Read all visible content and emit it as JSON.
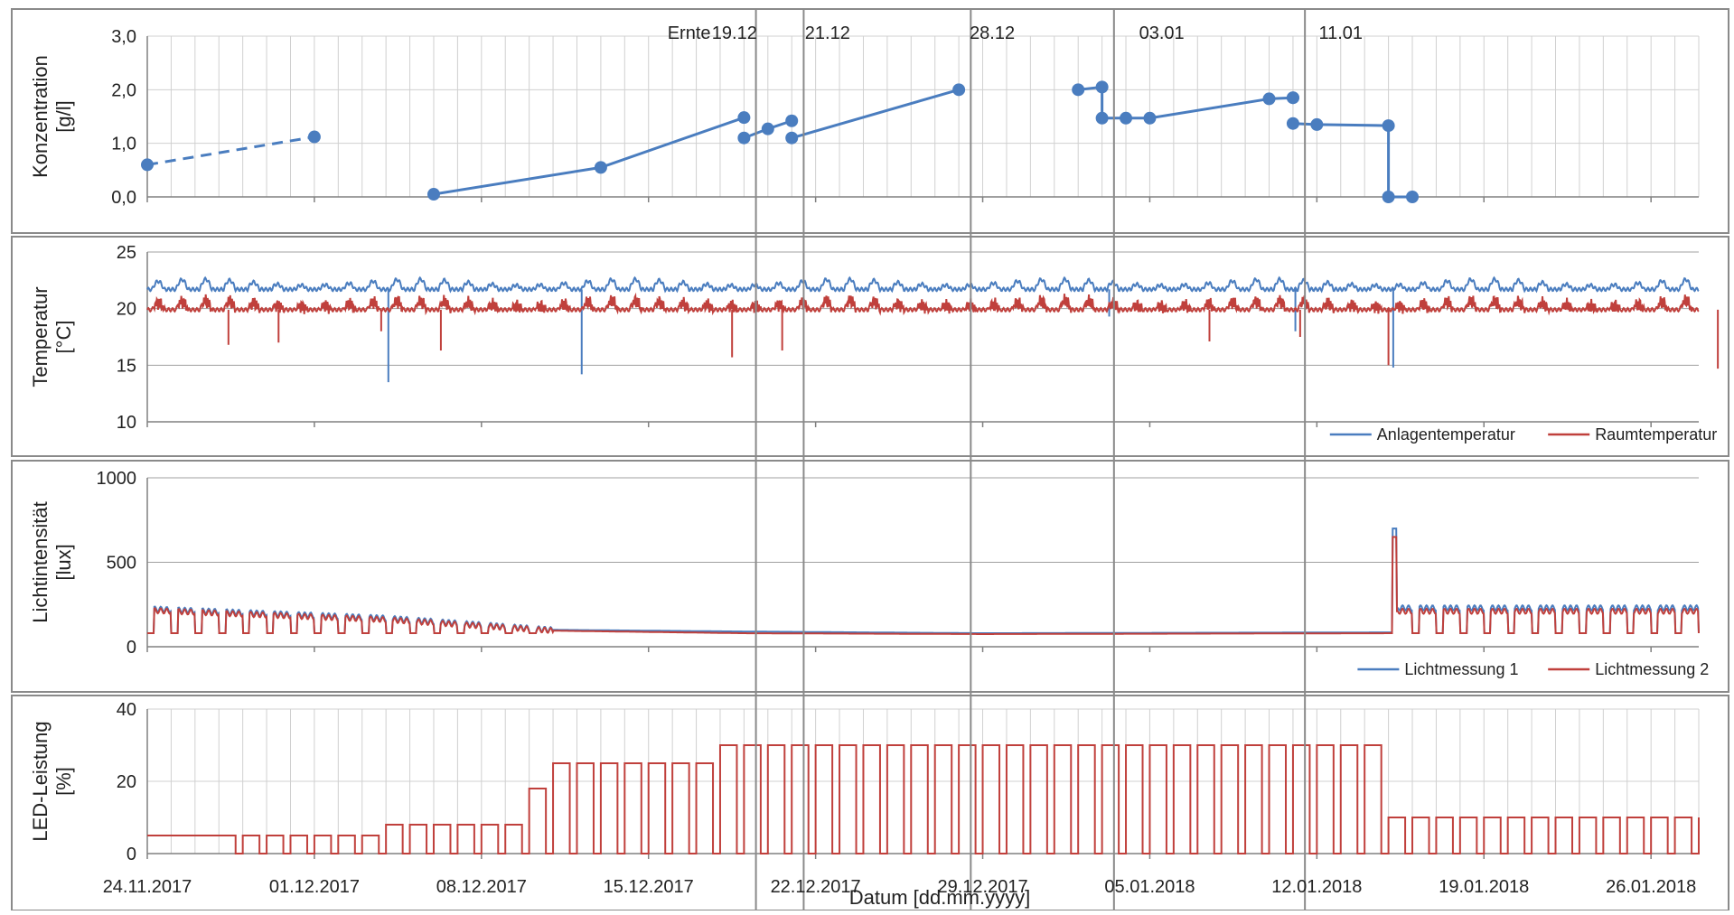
{
  "colors": {
    "blue": "#4a7dbf",
    "red": "#c0403c",
    "grid": "#d0d0d0",
    "axis": "#808080",
    "frame": "#8a8a8a"
  },
  "xlabel": "Datum [dd.mm.yyyy]",
  "x_ticks": [
    "24.11.2017",
    "01.12.2017",
    "08.12.2017",
    "15.12.2017",
    "22.12.2017",
    "29.12.2017",
    "05.01.2018",
    "12.01.2018",
    "19.01.2018",
    "26.01.2018"
  ],
  "annotations": [
    "Ernte",
    "19.12",
    "21.12",
    "28.12",
    "03.01",
    "11.01"
  ],
  "vlines_day": [
    25.5,
    27.5,
    34.5,
    40.5,
    48.5
  ],
  "chart_data": [
    {
      "type": "line",
      "ylabel": "Konzentration [g/l]",
      "ylim": [
        0,
        3
      ],
      "y_ticks": [
        "0,0",
        "1,0",
        "2,0",
        "3,0"
      ],
      "grid": "vertical per day",
      "series": [
        {
          "dashed": true,
          "x": [
            "24.11.2017",
            "31.11.2017"
          ],
          "y": [
            0.6,
            1.12
          ]
        },
        {
          "x": [
            "06.12.2017",
            "13.12.2017",
            "19.12.2017"
          ],
          "y": [
            0.05,
            0.55,
            1.48
          ]
        },
        {
          "x": [
            "19.12.2017",
            "20.12.2017",
            "21.12.2017"
          ],
          "y": [
            1.1,
            1.27,
            1.42
          ]
        },
        {
          "x": [
            "21.12.2017",
            "28.12.2017"
          ],
          "y": [
            1.1,
            2.0
          ]
        },
        {
          "x": [
            "02.01.2018",
            "03.01.2018",
            "03.01.2018",
            "04.01.2018",
            "05.01.2018",
            "10.01.2018",
            "11.01.2018",
            "11.01.2018"
          ],
          "y": [
            2.0,
            2.05,
            1.47,
            1.47,
            1.47,
            1.83,
            1.85,
            1.85
          ]
        },
        {
          "x": [
            "11.01.2018",
            "12.01.2018",
            "15.01.2018",
            "15.01.2018",
            "16.01.2018"
          ],
          "y": [
            1.37,
            1.35,
            1.33,
            0.0,
            0.0
          ]
        }
      ]
    },
    {
      "type": "line",
      "ylabel": "Temperatur [°C]",
      "ylim": [
        10,
        25
      ],
      "y_ticks": [
        "10",
        "15",
        "20",
        "25"
      ],
      "legend_position": "bottom-right",
      "series": [
        {
          "name": "Anlagentemperatur",
          "color": "#4a7dbf",
          "base": 21.7,
          "amp": 0.9,
          "spikes": [
            [
              10.1,
              13.5
            ],
            [
              18.2,
              14.2
            ],
            [
              40.3,
              19.3
            ],
            [
              48.1,
              18.0
            ],
            [
              52.2,
              14.8
            ]
          ]
        },
        {
          "name": "Raumtemperatur",
          "color": "#c0403c",
          "base": 19.9,
          "amp": 0.8,
          "spikes": [
            [
              3.4,
              16.8
            ],
            [
              5.5,
              17.0
            ],
            [
              9.8,
              18.0
            ],
            [
              12.3,
              16.3
            ],
            [
              24.5,
              15.7
            ],
            [
              26.6,
              16.3
            ],
            [
              44.5,
              17.1
            ],
            [
              48.3,
              17.5
            ],
            [
              52.0,
              15.0
            ],
            [
              65.8,
              14.7
            ]
          ]
        }
      ]
    },
    {
      "type": "line",
      "ylabel": "Lichtintensität [lux]",
      "ylim": [
        0,
        1000
      ],
      "y_ticks": [
        "0",
        "500",
        "1000"
      ],
      "legend_position": "bottom-right",
      "series": [
        {
          "name": "Lichtmessung 1",
          "color": "#4a7dbf",
          "level": [
            [
              0,
              225
            ],
            [
              10,
              170
            ],
            [
              17,
              100
            ],
            [
              25,
              90
            ],
            [
              35,
              80
            ],
            [
              52,
              85
            ],
            [
              52.2,
              700
            ],
            [
              52.5,
              230
            ],
            [
              66,
              230
            ]
          ]
        },
        {
          "name": "Lichtmessung 2",
          "color": "#c0403c",
          "level": [
            [
              0,
              215
            ],
            [
              10,
              160
            ],
            [
              17,
              95
            ],
            [
              25,
              80
            ],
            [
              35,
              75
            ],
            [
              52,
              80
            ],
            [
              52.2,
              650
            ],
            [
              52.5,
              210
            ],
            [
              66,
              210
            ]
          ]
        }
      ]
    },
    {
      "type": "line",
      "ylabel": "LED-Leistung [%]",
      "ylim": [
        0,
        40
      ],
      "y_ticks": [
        "0",
        "20",
        "40"
      ],
      "series": [
        {
          "name": "LED-Leistung",
          "color": "#c0403c",
          "steps": [
            [
              0,
              5
            ],
            [
              3,
              5
            ],
            [
              10,
              8
            ],
            [
              16,
              18
            ],
            [
              17,
              25
            ],
            [
              24,
              30
            ],
            [
              52,
              10
            ],
            [
              66,
              10
            ]
          ]
        }
      ]
    }
  ]
}
